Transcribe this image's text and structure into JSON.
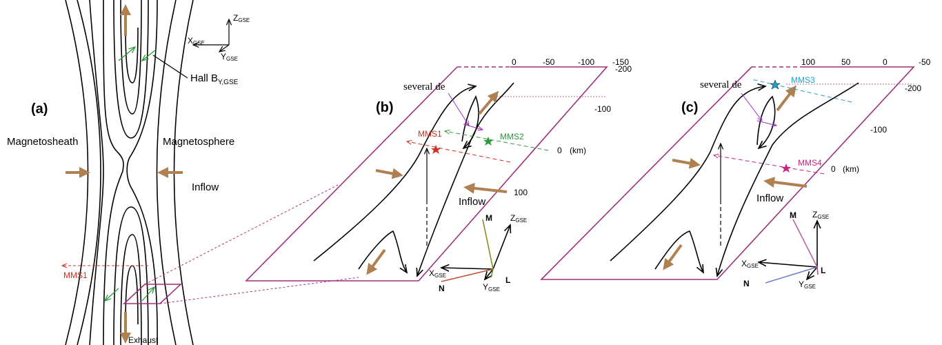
{
  "panel_a": {
    "label": "(a)",
    "left": "Magnetosheath",
    "right": "Magnetosphere",
    "inflow": "Inflow",
    "exhaust": "Exhaust",
    "hall": {
      "main": "Hall B",
      "sub": "Y,GSE"
    },
    "mms": "MMS1",
    "axes": {
      "x": {
        "main": "X",
        "sub": "GSE"
      },
      "y": {
        "main": "Y",
        "sub": "GSE"
      },
      "z": {
        "main": "Z",
        "sub": "GSE"
      }
    }
  },
  "panel_b": {
    "label": "(b)",
    "top_ticks": [
      "0",
      "-50",
      "-100",
      "-150",
      "-200"
    ],
    "right_ticks": [
      "-100",
      "0",
      "100"
    ],
    "unit": "(km)",
    "note": "several de",
    "mms": [
      "MMS1",
      "MMS2"
    ],
    "inflow": "Inflow",
    "axes": {
      "x": {
        "main": "X",
        "sub": "GSE"
      },
      "y": {
        "main": "Y",
        "sub": "GSE"
      },
      "z": {
        "main": "Z",
        "sub": "GSE"
      }
    },
    "lmn": [
      "M",
      "N",
      "L"
    ]
  },
  "panel_c": {
    "label": "(c)",
    "top_ticks": [
      "100",
      "50",
      "0",
      "-50"
    ],
    "right_ticks": [
      "-200",
      "-100",
      "0"
    ],
    "unit": "(km)",
    "note": "several de",
    "mms": [
      "MMS3",
      "MMS4"
    ],
    "inflow": "Inflow",
    "axes": {
      "x": {
        "main": "X",
        "sub": "GSE"
      },
      "y": {
        "main": "Y",
        "sub": "GSE"
      },
      "z": {
        "main": "Z",
        "sub": "GSE"
      }
    },
    "lmn": [
      "M",
      "N",
      "L"
    ]
  }
}
